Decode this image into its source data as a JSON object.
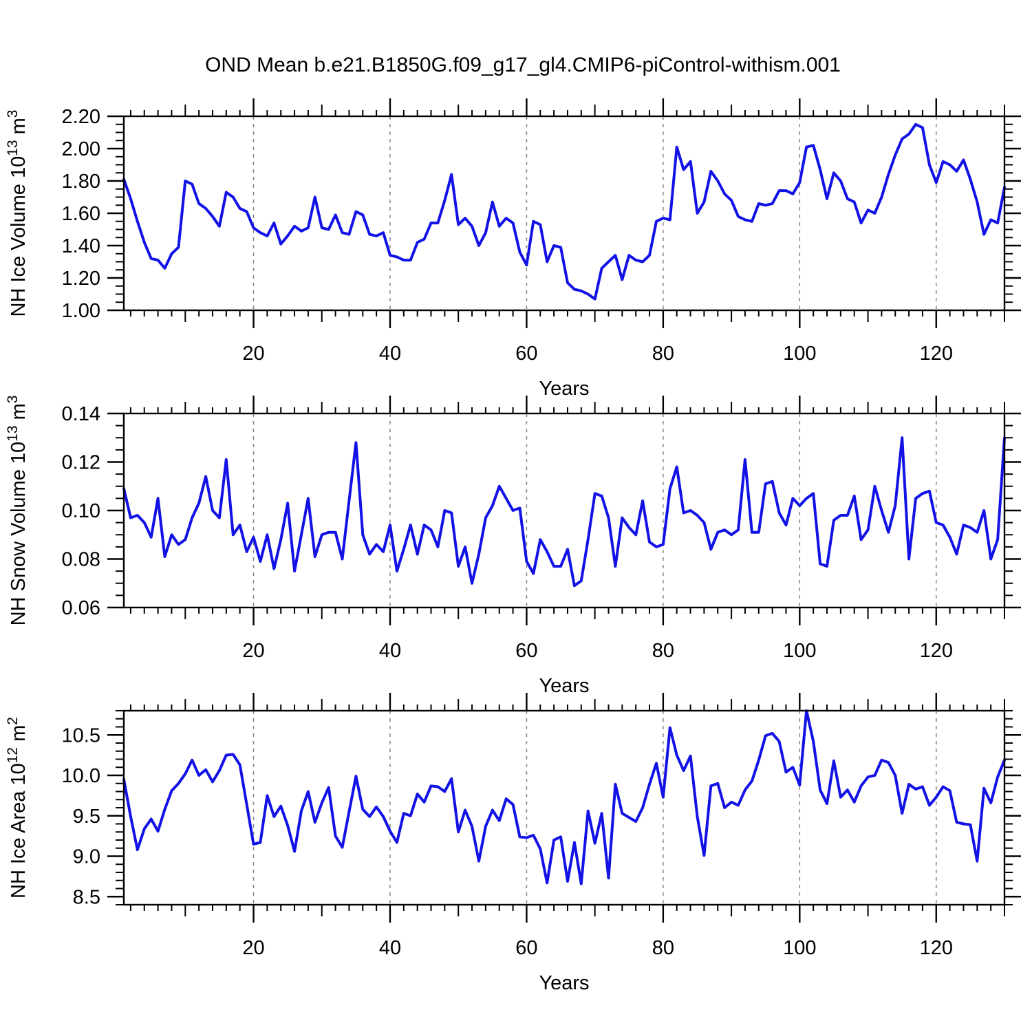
{
  "title": "OND Mean b.e21.B1850G.f09_g17_gl4.CMIP6-piControl-withism.001",
  "colors": {
    "line": "#1212e6",
    "axis": "#000000",
    "grid": "#848484",
    "text": "#000000",
    "background": "#ffffff"
  },
  "x_axis": {
    "label": "Years",
    "range": [
      1,
      130
    ],
    "major_tick_years": [
      20,
      40,
      60,
      80,
      100,
      120
    ],
    "mid_tick_step": 10,
    "minor_tick_step": 2,
    "gridline_years": [
      20,
      40,
      60,
      80,
      100,
      120
    ]
  },
  "chart_data": [
    {
      "type": "line",
      "name": "nh-ice-volume",
      "ylabel": "NH Ice Volume 10^13 m^3",
      "ylabel_rich": [
        {
          "t": "NH Ice Volume 10"
        },
        {
          "sup": "13"
        },
        {
          "t": " m"
        },
        {
          "sup": "3"
        }
      ],
      "xlabel": "Years",
      "ylim": [
        1.0,
        2.2
      ],
      "ytick_step": 0.2,
      "ytick_decimals": 2,
      "yminor_step": 0.05,
      "x_start_year": 1,
      "values": [
        1.81,
        1.69,
        1.55,
        1.42,
        1.32,
        1.31,
        1.26,
        1.35,
        1.39,
        1.8,
        1.78,
        1.66,
        1.63,
        1.58,
        1.52,
        1.73,
        1.7,
        1.63,
        1.61,
        1.51,
        1.48,
        1.46,
        1.54,
        1.41,
        1.46,
        1.52,
        1.49,
        1.51,
        1.7,
        1.51,
        1.5,
        1.59,
        1.48,
        1.47,
        1.61,
        1.59,
        1.47,
        1.46,
        1.48,
        1.34,
        1.33,
        1.31,
        1.31,
        1.42,
        1.44,
        1.54,
        1.54,
        1.68,
        1.84,
        1.53,
        1.57,
        1.52,
        1.4,
        1.48,
        1.67,
        1.52,
        1.57,
        1.54,
        1.36,
        1.28,
        1.55,
        1.53,
        1.3,
        1.4,
        1.39,
        1.17,
        1.13,
        1.12,
        1.1,
        1.07,
        1.26,
        1.3,
        1.34,
        1.19,
        1.34,
        1.31,
        1.3,
        1.34,
        1.55,
        1.57,
        1.56,
        2.01,
        1.87,
        1.92,
        1.6,
        1.67,
        1.86,
        1.8,
        1.72,
        1.68,
        1.58,
        1.56,
        1.55,
        1.66,
        1.65,
        1.66,
        1.74,
        1.74,
        1.72,
        1.79,
        2.01,
        2.02,
        1.87,
        1.69,
        1.85,
        1.8,
        1.69,
        1.67,
        1.54,
        1.62,
        1.6,
        1.7,
        1.84,
        1.96,
        2.06,
        2.09,
        2.15,
        2.13,
        1.9,
        1.79,
        1.92,
        1.9,
        1.86,
        1.93,
        1.81,
        1.67,
        1.47,
        1.56,
        1.54,
        1.76
      ]
    },
    {
      "type": "line",
      "name": "nh-snow-volume",
      "ylabel": "NH Snow Volume 10^13 m^3",
      "ylabel_rich": [
        {
          "t": "NH Snow Volume 10"
        },
        {
          "sup": "13"
        },
        {
          "t": " m"
        },
        {
          "sup": "3"
        }
      ],
      "xlabel": "Years",
      "ylim": [
        0.06,
        0.14
      ],
      "ytick_step": 0.02,
      "ytick_decimals": 2,
      "yminor_step": 0.005,
      "x_start_year": 1,
      "values": [
        0.109,
        0.097,
        0.098,
        0.095,
        0.089,
        0.105,
        0.081,
        0.09,
        0.086,
        0.088,
        0.097,
        0.103,
        0.114,
        0.1,
        0.097,
        0.121,
        0.09,
        0.094,
        0.083,
        0.089,
        0.079,
        0.09,
        0.076,
        0.088,
        0.103,
        0.075,
        0.09,
        0.105,
        0.081,
        0.09,
        0.091,
        0.091,
        0.08,
        0.104,
        0.128,
        0.09,
        0.082,
        0.086,
        0.083,
        0.094,
        0.075,
        0.084,
        0.094,
        0.082,
        0.094,
        0.092,
        0.085,
        0.1,
        0.099,
        0.077,
        0.085,
        0.07,
        0.082,
        0.097,
        0.102,
        0.11,
        0.105,
        0.1,
        0.101,
        0.079,
        0.074,
        0.088,
        0.083,
        0.077,
        0.077,
        0.084,
        0.069,
        0.071,
        0.088,
        0.107,
        0.106,
        0.097,
        0.077,
        0.097,
        0.093,
        0.09,
        0.104,
        0.087,
        0.085,
        0.086,
        0.109,
        0.118,
        0.099,
        0.1,
        0.098,
        0.095,
        0.084,
        0.091,
        0.092,
        0.09,
        0.092,
        0.121,
        0.091,
        0.091,
        0.111,
        0.112,
        0.099,
        0.094,
        0.105,
        0.102,
        0.105,
        0.107,
        0.078,
        0.077,
        0.096,
        0.098,
        0.098,
        0.106,
        0.088,
        0.092,
        0.11,
        0.1,
        0.091,
        0.102,
        0.13,
        0.08,
        0.105,
        0.107,
        0.108,
        0.095,
        0.094,
        0.089,
        0.082,
        0.094,
        0.093,
        0.091,
        0.1,
        0.08,
        0.088,
        0.13
      ]
    },
    {
      "type": "line",
      "name": "nh-ice-area",
      "ylabel": "NH Ice Area 10^12 m^2",
      "ylabel_rich": [
        {
          "t": "NH Ice Area 10"
        },
        {
          "sup": "12"
        },
        {
          "t": " m"
        },
        {
          "sup": "2"
        }
      ],
      "xlabel": "Years",
      "ylim": [
        8.4,
        10.8
      ],
      "ytick_step": 0.5,
      "ytick_decimals": 1,
      "yminor_step": 0.1,
      "x_start_year": 1,
      "values": [
        9.95,
        9.49,
        9.08,
        9.34,
        9.46,
        9.31,
        9.58,
        9.81,
        9.9,
        10.02,
        10.19,
        10.0,
        10.07,
        9.92,
        10.06,
        10.25,
        10.26,
        10.13,
        9.64,
        9.15,
        9.17,
        9.75,
        9.49,
        9.62,
        9.38,
        9.06,
        9.56,
        9.8,
        9.42,
        9.66,
        9.85,
        9.25,
        9.11,
        9.55,
        9.99,
        9.58,
        9.49,
        9.61,
        9.49,
        9.31,
        9.17,
        9.53,
        9.5,
        9.77,
        9.67,
        9.87,
        9.86,
        9.8,
        9.96,
        9.3,
        9.57,
        9.37,
        8.94,
        9.37,
        9.57,
        9.44,
        9.71,
        9.64,
        9.24,
        9.23,
        9.26,
        9.09,
        8.67,
        9.2,
        9.24,
        8.69,
        9.17,
        8.66,
        9.56,
        9.16,
        9.53,
        8.73,
        9.89,
        9.53,
        9.48,
        9.43,
        9.6,
        9.89,
        10.15,
        9.73,
        10.59,
        10.25,
        10.06,
        10.24,
        9.49,
        9.01,
        9.87,
        9.9,
        9.6,
        9.67,
        9.63,
        9.82,
        9.93,
        10.19,
        10.49,
        10.52,
        10.42,
        10.04,
        10.1,
        9.88,
        10.8,
        10.42,
        9.82,
        9.65,
        10.18,
        9.73,
        9.82,
        9.67,
        9.87,
        9.98,
        10.0,
        10.19,
        10.16,
        10.0,
        9.53,
        9.89,
        9.83,
        9.86,
        9.63,
        9.73,
        9.86,
        9.81,
        9.42,
        9.4,
        9.39,
        8.94,
        9.84,
        9.66,
        9.98,
        10.19
      ]
    }
  ]
}
